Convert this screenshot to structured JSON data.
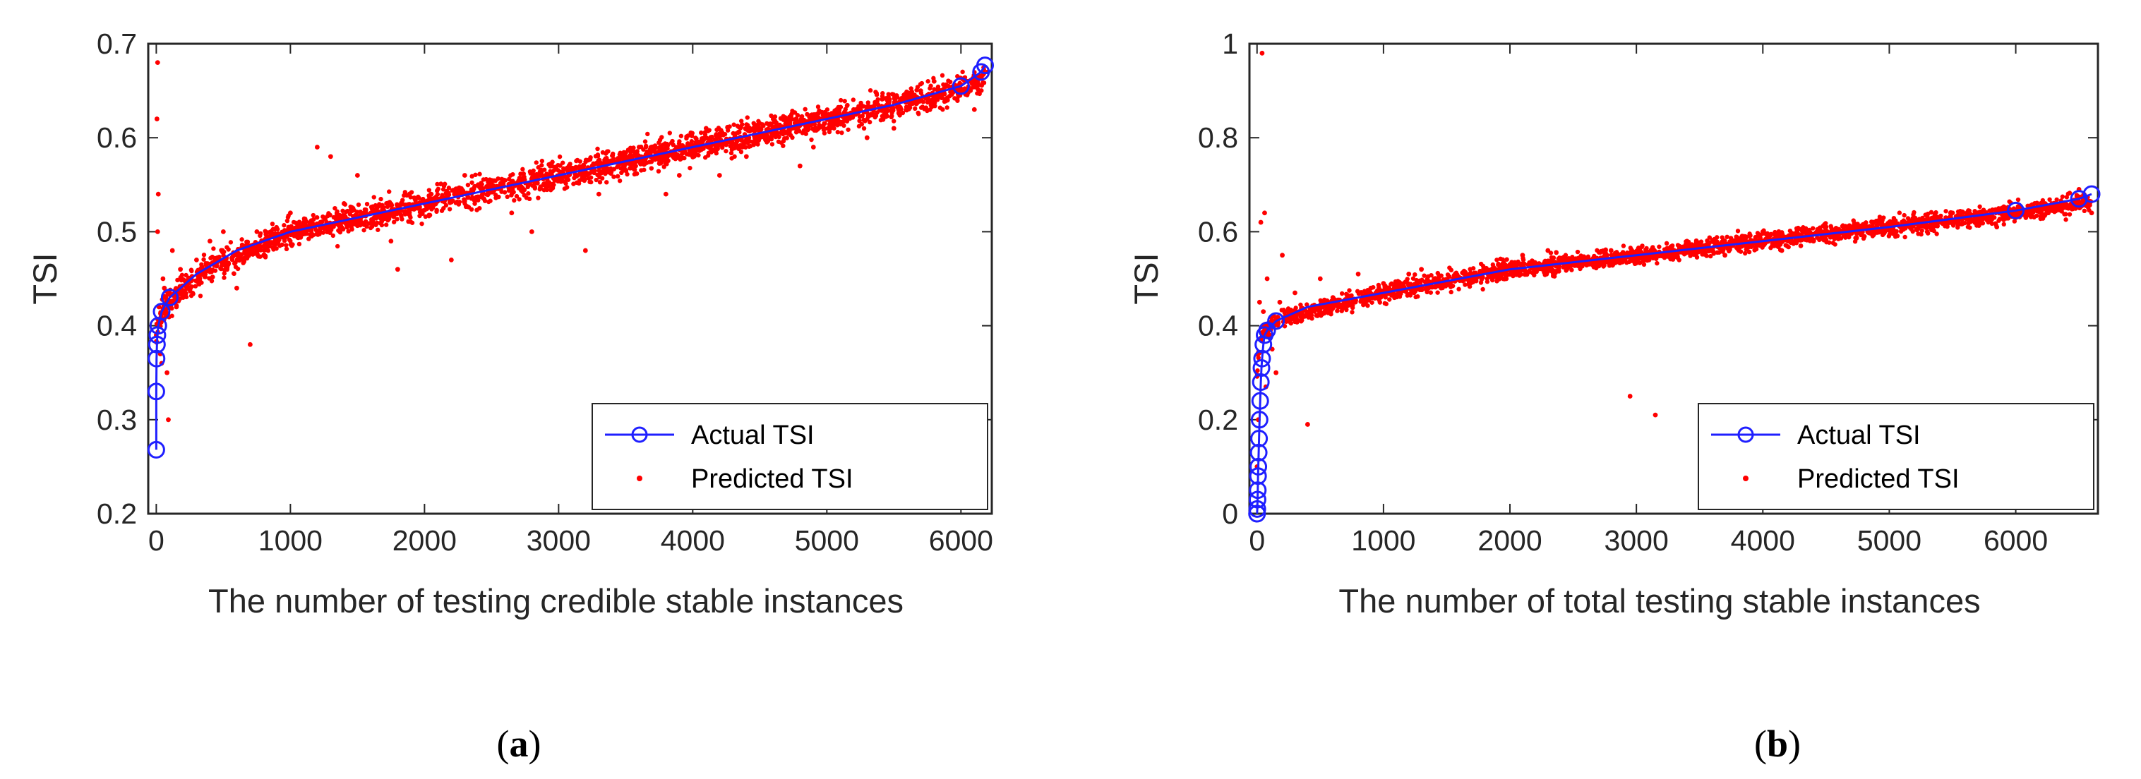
{
  "colors": {
    "actual": "#1f1fff",
    "predicted": "#ff0000",
    "axis": "#262626"
  },
  "chart_data": [
    {
      "type": "scatter",
      "caption_open": "(",
      "caption_letter": "a",
      "caption_close": ")",
      "xlabel": "The number of testing credible stable instances",
      "ylabel": "TSI",
      "xlim": [
        -60,
        6230
      ],
      "ylim": [
        0.2,
        0.7
      ],
      "xticks": [
        0,
        1000,
        2000,
        3000,
        4000,
        5000,
        6000
      ],
      "xtick_labels": [
        "0",
        "1000",
        "2000",
        "3000",
        "4000",
        "5000",
        "6000"
      ],
      "yticks": [
        0.2,
        0.3,
        0.4,
        0.5,
        0.6,
        0.7
      ],
      "ytick_labels": [
        "0.2",
        "0.3",
        "0.4",
        "0.5",
        "0.6",
        "0.7"
      ],
      "legend": [
        "Actual TSI",
        "Predicted TSI"
      ],
      "legend_position": "bottom-right",
      "series": [
        {
          "name": "Actual TSI",
          "marker": "open-circle-line",
          "x": [
            0,
            0,
            2,
            5,
            8,
            15,
            40,
            100,
            300,
            600,
            1000,
            1500,
            2000,
            2500,
            3000,
            3500,
            4000,
            4500,
            5000,
            5500,
            6000,
            6150,
            6180
          ],
          "y": [
            0.268,
            0.33,
            0.365,
            0.38,
            0.39,
            0.4,
            0.415,
            0.43,
            0.455,
            0.48,
            0.5,
            0.515,
            0.53,
            0.545,
            0.56,
            0.575,
            0.59,
            0.605,
            0.62,
            0.635,
            0.655,
            0.67,
            0.677
          ]
        },
        {
          "name": "Predicted TSI",
          "marker": "dot",
          "trend_x": [
            0,
            5,
            20,
            50,
            100,
            200,
            400,
            700,
            1000,
            1500,
            2000,
            2500,
            3000,
            3500,
            4000,
            4500,
            5000,
            5500,
            6000,
            6180
          ],
          "trend_y": [
            0.39,
            0.395,
            0.405,
            0.415,
            0.425,
            0.44,
            0.46,
            0.48,
            0.5,
            0.515,
            0.53,
            0.545,
            0.56,
            0.575,
            0.59,
            0.605,
            0.62,
            0.635,
            0.652,
            0.665
          ],
          "x": [
            0,
            5,
            10,
            20,
            30,
            50,
            80,
            120,
            200,
            300,
            400,
            500,
            700,
            1000,
            1200,
            1500,
            1800,
            2000,
            2200,
            2500,
            2800,
            3000,
            3200,
            3500,
            3800,
            4000,
            4200,
            4500,
            4800,
            5000,
            5300,
            5600,
            5800,
            6000,
            6100,
            6200,
            10,
            40,
            90,
            150,
            260,
            350,
            600,
            900,
            1100,
            1300,
            1600,
            1750,
            2050,
            2300,
            2650,
            2950,
            3300,
            3600,
            3900,
            4100,
            4400,
            4700,
            4900,
            5200,
            5500,
            5700,
            5900,
            6050,
            15,
            60,
            180,
            450,
            750,
            1400,
            2400,
            3250,
            4600,
            5450
          ],
          "y": [
            0.39,
            0.62,
            0.5,
            0.42,
            0.37,
            0.45,
            0.35,
            0.48,
            0.43,
            0.47,
            0.49,
            0.5,
            0.38,
            0.52,
            0.59,
            0.56,
            0.46,
            0.53,
            0.47,
            0.55,
            0.5,
            0.56,
            0.48,
            0.575,
            0.54,
            0.59,
            0.56,
            0.6,
            0.57,
            0.62,
            0.6,
            0.64,
            0.66,
            0.652,
            0.63,
            0.67,
            0.68,
            0.36,
            0.3,
            0.42,
            0.45,
            0.46,
            0.44,
            0.49,
            0.51,
            0.58,
            0.52,
            0.49,
            0.54,
            0.56,
            0.52,
            0.57,
            0.54,
            0.59,
            0.56,
            0.61,
            0.58,
            0.62,
            0.59,
            0.63,
            0.61,
            0.65,
            0.64,
            0.66,
            0.54,
            0.44,
            0.46,
            0.47,
            0.5,
            0.53,
            0.55,
            0.57,
            0.62,
            0.64
          ]
        }
      ]
    },
    {
      "type": "scatter",
      "caption_open": "(",
      "caption_letter": "b",
      "caption_close": ")",
      "xlabel": "The number of total testing stable instances",
      "ylabel": "TSI",
      "xlim": [
        -60,
        6650
      ],
      "ylim": [
        0,
        1
      ],
      "xticks": [
        0,
        1000,
        2000,
        3000,
        4000,
        5000,
        6000
      ],
      "xtick_labels": [
        "0",
        "1000",
        "2000",
        "3000",
        "4000",
        "5000",
        "6000"
      ],
      "yticks": [
        0,
        0.2,
        0.4,
        0.6,
        0.8,
        1
      ],
      "ytick_labels": [
        "0",
        "0.2",
        "0.4",
        "0.6",
        "0.8",
        "1"
      ],
      "legend": [
        "Actual TSI",
        "Predicted TSI"
      ],
      "legend_position": "bottom-right",
      "series": [
        {
          "name": "Actual TSI",
          "marker": "open-circle-line",
          "x": [
            0,
            2,
            4,
            6,
            8,
            10,
            13,
            16,
            20,
            25,
            30,
            35,
            40,
            50,
            60,
            80,
            150,
            400,
            1000,
            2000,
            3000,
            4000,
            5000,
            6000,
            6500,
            6600
          ],
          "y": [
            0.0,
            0.01,
            0.03,
            0.05,
            0.08,
            0.1,
            0.13,
            0.16,
            0.2,
            0.24,
            0.28,
            0.31,
            0.33,
            0.36,
            0.38,
            0.39,
            0.41,
            0.44,
            0.47,
            0.52,
            0.55,
            0.58,
            0.61,
            0.645,
            0.67,
            0.68
          ]
        },
        {
          "name": "Predicted TSI",
          "marker": "dot",
          "trend_x": [
            0,
            10,
            30,
            60,
            100,
            200,
            400,
            700,
            1000,
            1500,
            2000,
            2500,
            3000,
            3500,
            4000,
            4500,
            5000,
            5500,
            6000,
            6500,
            6600
          ],
          "trend_y": [
            0.3,
            0.33,
            0.37,
            0.39,
            0.4,
            0.415,
            0.43,
            0.45,
            0.47,
            0.495,
            0.52,
            0.535,
            0.55,
            0.565,
            0.58,
            0.595,
            0.61,
            0.625,
            0.64,
            0.66,
            0.665
          ],
          "x": [
            0,
            10,
            20,
            40,
            60,
            80,
            100,
            150,
            200,
            300,
            400,
            500,
            700,
            1000,
            1300,
            1600,
            2000,
            2300,
            2600,
            2950,
            3150,
            3400,
            3700,
            4000,
            4300,
            4600,
            5000,
            5300,
            5700,
            6000,
            6300,
            6500,
            6600,
            50,
            120,
            250,
            600,
            900,
            1200,
            1500,
            1800,
            2100,
            2450,
            2800,
            3100,
            3550,
            3850,
            4150,
            4500,
            4800,
            5150,
            5500,
            5850,
            6150,
            6450,
            30,
            70,
            180,
            800,
            1700,
            2700,
            3300,
            4400,
            5600
          ],
          "y": [
            0.1,
            0.2,
            0.45,
            0.98,
            0.64,
            0.5,
            0.38,
            0.3,
            0.55,
            0.47,
            0.19,
            0.5,
            0.44,
            0.49,
            0.52,
            0.5,
            0.53,
            0.56,
            0.54,
            0.25,
            0.21,
            0.58,
            0.55,
            0.6,
            0.57,
            0.6,
            0.62,
            0.6,
            0.64,
            0.63,
            0.66,
            0.69,
            0.64,
            0.43,
            0.35,
            0.42,
            0.46,
            0.48,
            0.51,
            0.49,
            0.52,
            0.55,
            0.52,
            0.56,
            0.54,
            0.57,
            0.59,
            0.56,
            0.61,
            0.59,
            0.62,
            0.64,
            0.61,
            0.66,
            0.65,
            0.62,
            0.27,
            0.45,
            0.51,
            0.5,
            0.53,
            0.56,
            0.58,
            0.63
          ]
        }
      ]
    }
  ]
}
